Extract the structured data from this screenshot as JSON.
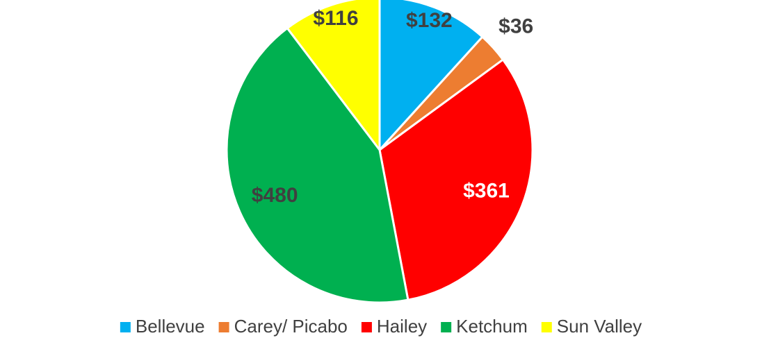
{
  "chart_data": {
    "type": "pie",
    "categories": [
      "Bellevue",
      "Carey/ Picabo",
      "Hailey",
      "Ketchum",
      "Sun Valley"
    ],
    "values": [
      132,
      36,
      361,
      480,
      116
    ],
    "value_labels": [
      "$132",
      "$36",
      "$361",
      "$480",
      "$116"
    ],
    "colors": [
      "#00b0f0",
      "#ed7d31",
      "#ff0000",
      "#00b050",
      "#ffff00"
    ],
    "value_label_colors": [
      "#404040",
      "#404040",
      "#ffffff",
      "#404040",
      "#404040"
    ],
    "legend": "bottom"
  }
}
